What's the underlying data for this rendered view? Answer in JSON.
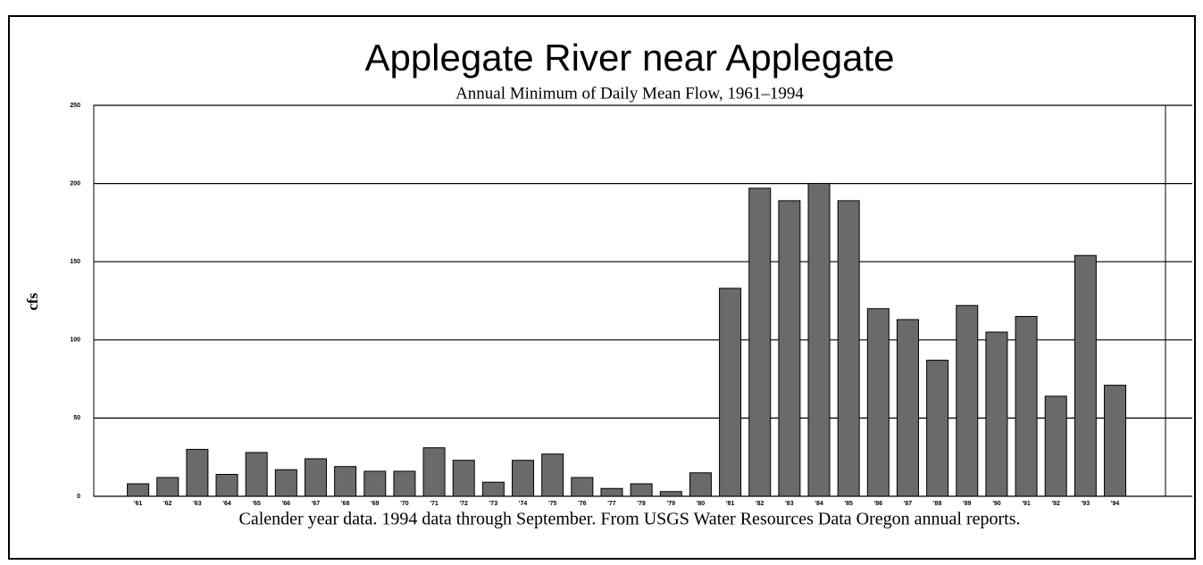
{
  "chart_data": {
    "type": "bar",
    "title": "Applegate River near Applegate",
    "subtitle": "Annual Minimum of Daily Mean Flow, 1961–1994",
    "y_label": "cfs",
    "footnote": "Calender year data.  1994 data through September. From USGS Water Resources Data Oregon annual reports.",
    "categories": [
      "'61",
      "'62",
      "'63",
      "'64",
      "'65",
      "'66",
      "'67",
      "'68",
      "'69",
      "'70",
      "'71",
      "'72",
      "'73",
      "'74",
      "'75",
      "'76",
      "'77",
      "'78",
      "'79",
      "'80",
      "'81",
      "'82",
      "'83",
      "'84",
      "'85",
      "'86",
      "'87",
      "'88",
      "'89",
      "'90",
      "'91",
      "'92",
      "'93",
      "'94"
    ],
    "values": [
      8,
      12,
      30,
      14,
      28,
      17,
      24,
      19,
      16,
      16,
      31,
      23,
      9,
      23,
      27,
      12,
      5,
      8,
      3,
      15,
      133,
      197,
      189,
      200,
      189,
      120,
      113,
      87,
      122,
      105,
      115,
      64,
      154,
      71
    ],
    "color": "#6a6a6a",
    "ylim": [
      0,
      250
    ],
    "yticks": [
      0,
      50,
      100,
      150,
      200,
      250
    ],
    "grid": true
  }
}
